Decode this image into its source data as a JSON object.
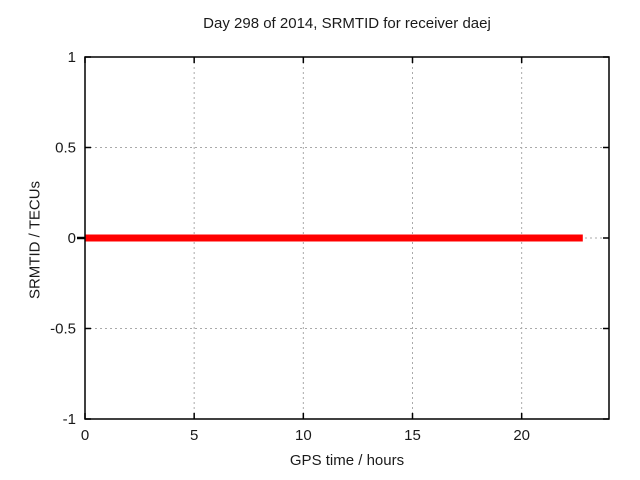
{
  "window": {
    "background": "#ffffff"
  },
  "chart_data": {
    "type": "line",
    "title": "Day 298 of 2014, SRMTID for receiver daej",
    "xlabel": "GPS time / hours",
    "ylabel": "SRMTID / TECUs",
    "xlim": [
      0,
      24
    ],
    "ylim": [
      -1,
      1
    ],
    "xticks": [
      0,
      5,
      10,
      15,
      20
    ],
    "xtick_labels": [
      "0",
      "5",
      "10",
      "15",
      "20"
    ],
    "yticks": [
      -1,
      -0.5,
      0,
      0.5,
      1
    ],
    "ytick_labels": [
      "-1",
      "-0.5",
      "0",
      "0.5",
      "1"
    ],
    "grid": true,
    "grid_color": "#aaaaaa",
    "axis_color": "#000000",
    "text_color": "#1a1a1a",
    "legend": "none",
    "series": [
      {
        "name": "SRMTID",
        "color": "#ff0000",
        "line_width": 7,
        "x": [
          0,
          22.8
        ],
        "y": [
          0,
          0
        ]
      }
    ]
  }
}
